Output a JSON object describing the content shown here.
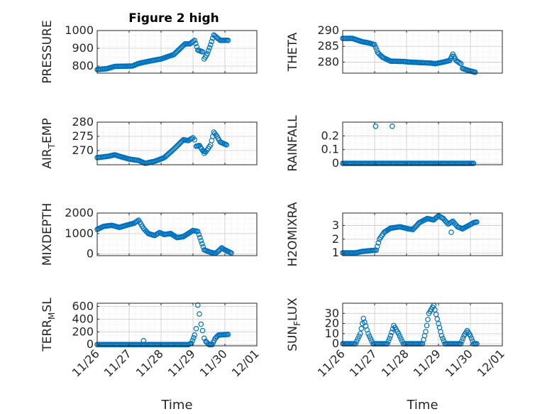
{
  "figure": {
    "title": "Figure 2 high",
    "marker_color": "#0072bd",
    "grid_color": "#cccccc",
    "axes_color": "#262626"
  },
  "chart_data": [
    {
      "type": "scatter",
      "id": "pressure",
      "ylabel": "PRESSURE",
      "xlabel": "",
      "xlim": [
        0,
        5
      ],
      "ylim": [
        760,
        1000
      ],
      "yticks": [
        800,
        900,
        1000
      ],
      "xticks": [],
      "grid": true,
      "segments": [
        [
          0.0,
          780
        ],
        [
          0.3,
          785
        ],
        [
          0.55,
          798
        ],
        [
          1.1,
          800
        ],
        [
          1.3,
          815
        ],
        [
          1.7,
          830
        ],
        [
          2.0,
          840
        ],
        [
          2.4,
          865
        ],
        [
          2.75,
          925
        ],
        [
          2.9,
          925
        ],
        [
          3.05,
          945
        ],
        [
          3.15,
          890
        ],
        [
          3.3,
          880
        ],
        [
          3.35,
          840
        ],
        [
          3.45,
          870
        ],
        [
          3.55,
          920
        ],
        [
          3.65,
          975
        ],
        [
          3.75,
          960
        ],
        [
          3.85,
          945
        ],
        [
          4.1,
          945
        ]
      ]
    },
    {
      "type": "scatter",
      "id": "theta",
      "ylabel": "THETA",
      "xlabel": "",
      "xlim": [
        0,
        5
      ],
      "ylim": [
        276.5,
        290
      ],
      "yticks": [
        280,
        285,
        290
      ],
      "xticks": [],
      "grid": true,
      "segments": [
        [
          0.0,
          287.5
        ],
        [
          0.3,
          287.5
        ],
        [
          0.6,
          286.5
        ],
        [
          0.85,
          286
        ],
        [
          1.0,
          285.5
        ],
        [
          1.1,
          283
        ],
        [
          1.25,
          281.5
        ],
        [
          1.5,
          280.3
        ],
        [
          1.9,
          280.2
        ],
        [
          2.1,
          280
        ],
        [
          2.5,
          279.8
        ],
        [
          2.75,
          279.7
        ],
        [
          2.9,
          279.5
        ],
        [
          3.15,
          280
        ],
        [
          3.35,
          280.5
        ],
        [
          3.45,
          282.5
        ],
        [
          3.55,
          280.5
        ],
        [
          3.7,
          279.5
        ],
        [
          3.75,
          278
        ],
        [
          3.95,
          277.3
        ],
        [
          4.15,
          276.8
        ]
      ]
    },
    {
      "type": "scatter",
      "id": "air_temp",
      "ylabel": "AIR_TEMP",
      "xlabel": "",
      "xlim": [
        0,
        5
      ],
      "ylim": [
        265,
        280
      ],
      "yticks": [
        270,
        275,
        280
      ],
      "xticks": [],
      "grid": true,
      "segments": [
        [
          0.0,
          267.5
        ],
        [
          0.35,
          268
        ],
        [
          0.55,
          268.5
        ],
        [
          0.75,
          267.8
        ],
        [
          1.0,
          267
        ],
        [
          1.3,
          266.5
        ],
        [
          1.5,
          265.5
        ],
        [
          1.8,
          266.2
        ],
        [
          2.1,
          267.5
        ],
        [
          2.4,
          270.5
        ],
        [
          2.7,
          273.8
        ],
        [
          2.85,
          273.5
        ],
        [
          3.0,
          274.5
        ],
        [
          3.05,
          273.8
        ],
        [
          3.1,
          271.5
        ],
        [
          3.2,
          271.8
        ],
        [
          3.3,
          270
        ],
        [
          3.4,
          269.5
        ],
        [
          3.55,
          272
        ],
        [
          3.65,
          276.5
        ],
        [
          3.75,
          275
        ],
        [
          3.85,
          273
        ],
        [
          4.05,
          272
        ]
      ],
      "isolated": [
        [
          3.35,
          269.0
        ]
      ]
    },
    {
      "type": "scatter",
      "id": "rainfall",
      "ylabel": "RAINFALL",
      "xlabel": "",
      "xlim": [
        0,
        5
      ],
      "ylim": [
        -0.01,
        0.3
      ],
      "yticks": [
        0,
        0.1,
        0.2
      ],
      "ytick_labels": [
        "0",
        "0.1",
        "0.2"
      ],
      "xticks": [],
      "grid": true,
      "segments": [
        [
          0.0,
          0
        ],
        [
          4.1,
          0
        ]
      ],
      "isolated": [
        [
          1.03,
          0.27
        ],
        [
          1.55,
          0.27
        ]
      ]
    },
    {
      "type": "scatter",
      "id": "mixdepth",
      "ylabel": "MIXDEPTH",
      "xlabel": "",
      "xlim": [
        0,
        5
      ],
      "ylim": [
        -80,
        2000
      ],
      "yticks": [
        0,
        1000,
        2000
      ],
      "xticks": [],
      "grid": true,
      "segments": [
        [
          0.0,
          1200
        ],
        [
          0.2,
          1350
        ],
        [
          0.45,
          1400
        ],
        [
          0.7,
          1300
        ],
        [
          0.9,
          1400
        ],
        [
          1.15,
          1500
        ],
        [
          1.3,
          1650
        ],
        [
          1.45,
          1250
        ],
        [
          1.6,
          1000
        ],
        [
          1.8,
          900
        ],
        [
          1.95,
          1050
        ],
        [
          2.1,
          950
        ],
        [
          2.3,
          1000
        ],
        [
          2.5,
          800
        ],
        [
          2.7,
          850
        ],
        [
          2.9,
          1050
        ],
        [
          3.0,
          1150
        ],
        [
          3.15,
          1100
        ],
        [
          3.25,
          650
        ],
        [
          3.35,
          200
        ],
        [
          3.55,
          80
        ],
        [
          3.7,
          30
        ],
        [
          3.8,
          150
        ],
        [
          3.9,
          300
        ],
        [
          4.0,
          200
        ],
        [
          4.2,
          50
        ]
      ]
    },
    {
      "type": "scatter",
      "id": "h2omixra",
      "ylabel": "H2OMIXRA",
      "xlabel": "",
      "xlim": [
        0,
        5
      ],
      "ylim": [
        0.8,
        3.9
      ],
      "yticks": [
        1,
        2,
        3
      ],
      "xticks": [],
      "grid": true,
      "segments": [
        [
          0.0,
          1
        ],
        [
          0.4,
          1
        ],
        [
          0.6,
          1.1
        ],
        [
          0.8,
          1.15
        ],
        [
          1.05,
          1.2
        ],
        [
          1.15,
          2
        ],
        [
          1.3,
          2.5
        ],
        [
          1.5,
          2.8
        ],
        [
          1.8,
          2.9
        ],
        [
          2.05,
          2.75
        ],
        [
          2.2,
          2.7
        ],
        [
          2.4,
          3.2
        ],
        [
          2.65,
          3.5
        ],
        [
          2.85,
          3.4
        ],
        [
          3.0,
          3.7
        ],
        [
          3.15,
          3.5
        ],
        [
          3.3,
          3.1
        ],
        [
          3.45,
          3.3
        ],
        [
          3.6,
          2.9
        ],
        [
          3.75,
          2.75
        ],
        [
          3.95,
          3
        ],
        [
          4.1,
          3.2
        ],
        [
          4.2,
          3.25
        ]
      ],
      "isolated": [
        [
          3.4,
          2.5
        ]
      ]
    },
    {
      "type": "scatter",
      "id": "terr_msl",
      "ylabel": "TERR_MSL",
      "xlabel": "Time",
      "xlim": [
        0,
        5
      ],
      "ylim": [
        -20,
        650
      ],
      "yticks": [
        0,
        200,
        400,
        600
      ],
      "xticks": [
        0,
        1,
        2,
        3,
        4,
        5
      ],
      "xtick_labels": [
        "11/26",
        "11/27",
        "11/28",
        "11/29",
        "11/30",
        "12/01"
      ],
      "grid": true,
      "segments": [
        [
          0.0,
          0
        ],
        [
          2.85,
          0
        ],
        [
          2.95,
          20
        ],
        [
          3.05,
          150
        ],
        [
          3.1,
          250
        ],
        [
          3.15,
          620
        ],
        [
          3.2,
          480
        ],
        [
          3.25,
          320
        ],
        [
          3.3,
          220
        ],
        [
          3.35,
          100
        ],
        [
          3.4,
          50
        ],
        [
          3.5,
          0
        ],
        [
          3.6,
          0
        ],
        [
          3.7,
          100
        ],
        [
          3.8,
          150
        ],
        [
          4.1,
          160
        ]
      ],
      "isolated": [
        [
          1.45,
          60
        ]
      ]
    },
    {
      "type": "scatter",
      "id": "sun_flux",
      "ylabel": "SUN_FLUX",
      "xlabel": "Time",
      "xlim": [
        0,
        5
      ],
      "ylim": [
        -2,
        40
      ],
      "yticks": [
        0,
        10,
        20,
        30
      ],
      "xticks": [
        0,
        1,
        2,
        3,
        4,
        5
      ],
      "xtick_labels": [
        "11/26",
        "11/27",
        "11/28",
        "11/29",
        "11/30",
        "12/01"
      ],
      "grid": true,
      "segments": [
        [
          0.0,
          0
        ],
        [
          0.4,
          0
        ],
        [
          0.55,
          10
        ],
        [
          0.65,
          25
        ],
        [
          0.8,
          10
        ],
        [
          0.95,
          0
        ],
        [
          1.4,
          0
        ],
        [
          1.5,
          8
        ],
        [
          1.6,
          18
        ],
        [
          1.75,
          10
        ],
        [
          1.9,
          0
        ],
        [
          2.5,
          0
        ],
        [
          2.6,
          12
        ],
        [
          2.7,
          30
        ],
        [
          2.85,
          38
        ],
        [
          3.0,
          20
        ],
        [
          3.1,
          8
        ],
        [
          3.2,
          0
        ],
        [
          3.7,
          0
        ],
        [
          3.8,
          8
        ],
        [
          3.9,
          13
        ],
        [
          4.0,
          8
        ],
        [
          4.1,
          0
        ],
        [
          4.2,
          0
        ]
      ]
    }
  ]
}
